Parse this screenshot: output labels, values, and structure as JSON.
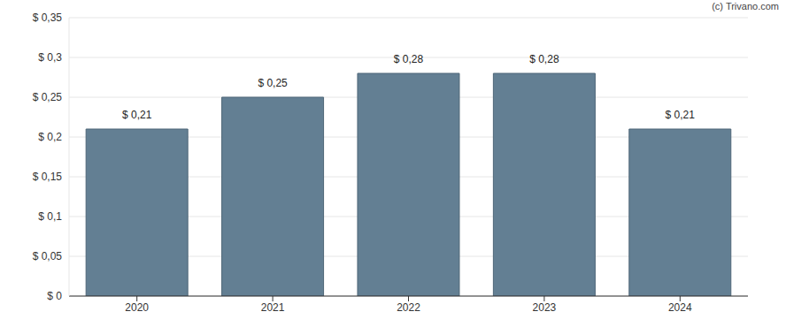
{
  "chart_data": {
    "type": "bar",
    "categories": [
      "2020",
      "2021",
      "2022",
      "2023",
      "2024"
    ],
    "values": [
      0.21,
      0.25,
      0.28,
      0.28,
      0.21
    ],
    "value_labels": [
      "$ 0,21",
      "$ 0,25",
      "$ 0,28",
      "$ 0,28",
      "$ 0,21"
    ],
    "data_labels": true,
    "color": "#637f93",
    "ylim": [
      0,
      0.35
    ],
    "yticks": [
      {
        "value": 0,
        "label": "$ 0"
      },
      {
        "value": 0.05,
        "label": "$ 0,05"
      },
      {
        "value": 0.1,
        "label": "$ 0,1"
      },
      {
        "value": 0.15,
        "label": "$ 0,15"
      },
      {
        "value": 0.2,
        "label": "$ 0,2"
      },
      {
        "value": 0.25,
        "label": "$ 0,25"
      },
      {
        "value": 0.3,
        "label": "$ 0,3"
      },
      {
        "value": 0.35,
        "label": "$ 0,35"
      }
    ],
    "grid": true,
    "annotations": [
      "(c) Trivano.com"
    ]
  }
}
